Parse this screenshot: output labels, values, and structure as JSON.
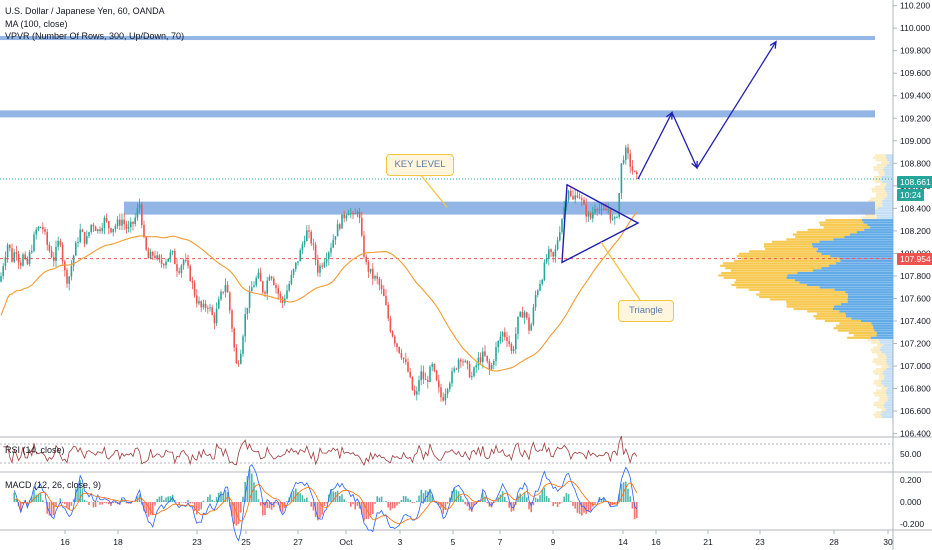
{
  "legend": {
    "title": "U.S. Dollar / Japanese Yen, 60, OANDA",
    "ma": "MA (100, close)",
    "vpvr": "VPVR (Number Of Rows, 300, Up/Down, 70)",
    "rsi": "RSI (14, close)",
    "macd": "MACD (12, 26, close, 9)"
  },
  "price_badges": {
    "last": "108.661",
    "countdown": "10:24",
    "reference": "107.954"
  },
  "annotations": {
    "key_level": "KEY LEVEL",
    "triangle": "Triangle"
  },
  "colors": {
    "up": "#26a69a",
    "down": "#ef5350",
    "ma": "#f39c33",
    "zone": "#7fa8e0",
    "drawing": "#2020b0",
    "vpvr_up": "#5aa6e6",
    "vpvr_down": "#f7c648",
    "badge_green": "#26a69a",
    "badge_red": "#ef5350",
    "rsi": "#a23b3b"
  },
  "chart_data": [
    {
      "type": "candlestick",
      "title": "U.S. Dollar / Japanese Yen, 60, OANDA",
      "x_ticks": [
        "16",
        "18",
        "23",
        "25",
        "27",
        "Oct",
        "3",
        "5",
        "7",
        "9",
        "14",
        "16",
        "21",
        "23",
        "28",
        "30"
      ],
      "y_ticks": [
        "110.200",
        "110.000",
        "109.800",
        "109.600",
        "109.400",
        "109.200",
        "109.000",
        "108.800",
        "108.600",
        "108.400",
        "108.200",
        "108.000",
        "107.800",
        "107.600",
        "107.400",
        "107.200",
        "107.000",
        "106.800",
        "106.600",
        "106.400"
      ],
      "ylim": [
        106.37,
        110.25
      ],
      "price_path": [
        [
          0,
          107.75
        ],
        [
          4,
          107.95
        ],
        [
          8,
          108.1
        ],
        [
          12,
          107.95
        ],
        [
          16,
          108.05
        ],
        [
          20,
          107.9
        ],
        [
          24,
          108.0
        ],
        [
          26,
          107.85
        ],
        [
          30,
          108.0
        ],
        [
          36,
          108.2
        ],
        [
          42,
          108.25
        ],
        [
          48,
          108.05
        ],
        [
          54,
          107.95
        ],
        [
          60,
          108.15
        ],
        [
          64,
          107.85
        ],
        [
          68,
          107.75
        ],
        [
          74,
          108.0
        ],
        [
          80,
          108.2
        ],
        [
          86,
          108.1
        ],
        [
          92,
          108.28
        ],
        [
          98,
          108.2
        ],
        [
          104,
          108.3
        ],
        [
          110,
          108.22
        ],
        [
          116,
          108.25
        ],
        [
          122,
          108.3
        ],
        [
          128,
          108.2
        ],
        [
          134,
          108.28
        ],
        [
          140,
          108.45
        ],
        [
          144,
          108.1
        ],
        [
          148,
          107.95
        ],
        [
          154,
          108.0
        ],
        [
          160,
          107.9
        ],
        [
          166,
          107.95
        ],
        [
          172,
          108.0
        ],
        [
          178,
          107.85
        ],
        [
          184,
          107.95
        ],
        [
          190,
          107.8
        ],
        [
          196,
          107.6
        ],
        [
          202,
          107.5
        ],
        [
          208,
          107.55
        ],
        [
          214,
          107.4
        ],
        [
          220,
          107.6
        ],
        [
          226,
          107.75
        ],
        [
          232,
          107.35
        ],
        [
          236,
          107.0
        ],
        [
          240,
          107.1
        ],
        [
          246,
          107.5
        ],
        [
          252,
          107.7
        ],
        [
          258,
          107.8
        ],
        [
          264,
          107.65
        ],
        [
          270,
          107.85
        ],
        [
          276,
          107.7
        ],
        [
          282,
          107.55
        ],
        [
          288,
          107.7
        ],
        [
          294,
          107.85
        ],
        [
          300,
          108.0
        ],
        [
          306,
          108.2
        ],
        [
          312,
          108.1
        ],
        [
          318,
          107.85
        ],
        [
          324,
          107.95
        ],
        [
          330,
          108.05
        ],
        [
          336,
          108.2
        ],
        [
          342,
          108.3
        ],
        [
          348,
          108.4
        ],
        [
          354,
          108.3
        ],
        [
          358,
          108.42
        ],
        [
          362,
          108.1
        ],
        [
          366,
          107.9
        ],
        [
          372,
          107.8
        ],
        [
          378,
          107.75
        ],
        [
          384,
          107.6
        ],
        [
          390,
          107.35
        ],
        [
          396,
          107.2
        ],
        [
          402,
          107.1
        ],
        [
          408,
          106.95
        ],
        [
          412,
          106.8
        ],
        [
          416,
          106.7
        ],
        [
          420,
          106.95
        ],
        [
          426,
          106.85
        ],
        [
          432,
          107.0
        ],
        [
          438,
          106.8
        ],
        [
          442,
          106.7
        ],
        [
          448,
          106.85
        ],
        [
          454,
          106.95
        ],
        [
          460,
          107.1
        ],
        [
          466,
          107.0
        ],
        [
          472,
          106.9
        ],
        [
          478,
          107.05
        ],
        [
          484,
          107.1
        ],
        [
          490,
          106.95
        ],
        [
          496,
          107.15
        ],
        [
          502,
          107.3
        ],
        [
          508,
          107.25
        ],
        [
          512,
          107.1
        ],
        [
          518,
          107.4
        ],
        [
          524,
          107.5
        ],
        [
          530,
          107.3
        ],
        [
          536,
          107.65
        ],
        [
          542,
          107.8
        ],
        [
          548,
          108.0
        ],
        [
          554,
          107.95
        ],
        [
          558,
          108.15
        ],
        [
          564,
          108.4
        ],
        [
          568,
          108.6
        ],
        [
          572,
          108.45
        ],
        [
          578,
          108.55
        ],
        [
          584,
          108.4
        ],
        [
          590,
          108.3
        ],
        [
          596,
          108.45
        ],
        [
          602,
          108.35
        ],
        [
          608,
          108.4
        ],
        [
          614,
          108.25
        ],
        [
          618,
          108.4
        ],
        [
          622,
          108.85
        ],
        [
          626,
          108.9
        ],
        [
          630,
          108.8
        ],
        [
          634,
          108.7
        ],
        [
          638,
          108.65
        ]
      ]
    },
    {
      "type": "line",
      "series": [
        {
          "name": "MA (100, close)",
          "values": "simple moving average of price_path"
        }
      ]
    },
    {
      "type": "line",
      "title": "RSI (14, close)",
      "y_ticks": [
        "50.00"
      ]
    },
    {
      "type": "bar",
      "title": "MACD (12, 26, close, 9)",
      "y_ticks": [
        "0.200",
        "0.000",
        "-0.200"
      ]
    }
  ]
}
